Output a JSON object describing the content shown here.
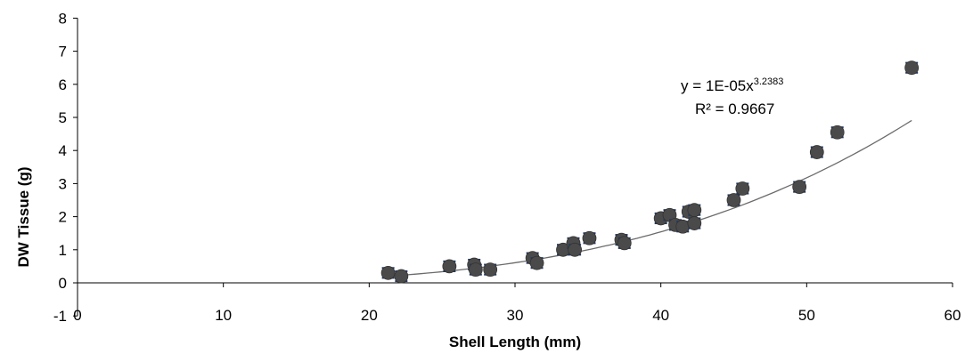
{
  "chart_data": {
    "type": "scatter",
    "title": "",
    "xlabel": "Shell Length (mm)",
    "ylabel": "DW Tissue (g)",
    "xlim": [
      0,
      60
    ],
    "ylim": [
      -1,
      8
    ],
    "x_ticks": [
      "0",
      "10",
      "20",
      "30",
      "40",
      "50",
      "60"
    ],
    "y_ticks": [
      "-1",
      "0",
      "1",
      "2",
      "3",
      "4",
      "5",
      "6",
      "7",
      "8"
    ],
    "grid": false,
    "legend": "none",
    "error_bar_size": 0.15,
    "points": [
      {
        "x": 21.3,
        "y": 0.3
      },
      {
        "x": 22.2,
        "y": 0.2
      },
      {
        "x": 25.5,
        "y": 0.5
      },
      {
        "x": 27.2,
        "y": 0.55
      },
      {
        "x": 27.3,
        "y": 0.4
      },
      {
        "x": 28.3,
        "y": 0.4
      },
      {
        "x": 31.2,
        "y": 0.75
      },
      {
        "x": 31.5,
        "y": 0.6
      },
      {
        "x": 33.3,
        "y": 1.0
      },
      {
        "x": 34.0,
        "y": 1.2
      },
      {
        "x": 34.1,
        "y": 1.0
      },
      {
        "x": 35.1,
        "y": 1.35
      },
      {
        "x": 37.3,
        "y": 1.3
      },
      {
        "x": 37.5,
        "y": 1.2
      },
      {
        "x": 40.0,
        "y": 1.95
      },
      {
        "x": 40.6,
        "y": 2.05
      },
      {
        "x": 41.0,
        "y": 1.75
      },
      {
        "x": 41.5,
        "y": 1.7
      },
      {
        "x": 41.9,
        "y": 2.15
      },
      {
        "x": 42.3,
        "y": 2.2
      },
      {
        "x": 42.3,
        "y": 1.8
      },
      {
        "x": 45.0,
        "y": 2.5
      },
      {
        "x": 45.6,
        "y": 2.85
      },
      {
        "x": 49.5,
        "y": 2.9
      },
      {
        "x": 50.7,
        "y": 3.95
      },
      {
        "x": 52.1,
        "y": 4.55
      },
      {
        "x": 57.2,
        "y": 6.5
      }
    ],
    "trendline": {
      "type": "power",
      "a": 1e-05,
      "b": 3.2383,
      "x_range": [
        21.3,
        57.2
      ],
      "equation_base": "y = 1E-05x",
      "equation_exponent": "3.2383",
      "r_squared_label": "R² = 0.9667"
    },
    "colors": {
      "marker": "#4a4a4a",
      "error_bar": "#1f3864",
      "trendline": "#6b6b6b",
      "axis": "#000000"
    }
  }
}
